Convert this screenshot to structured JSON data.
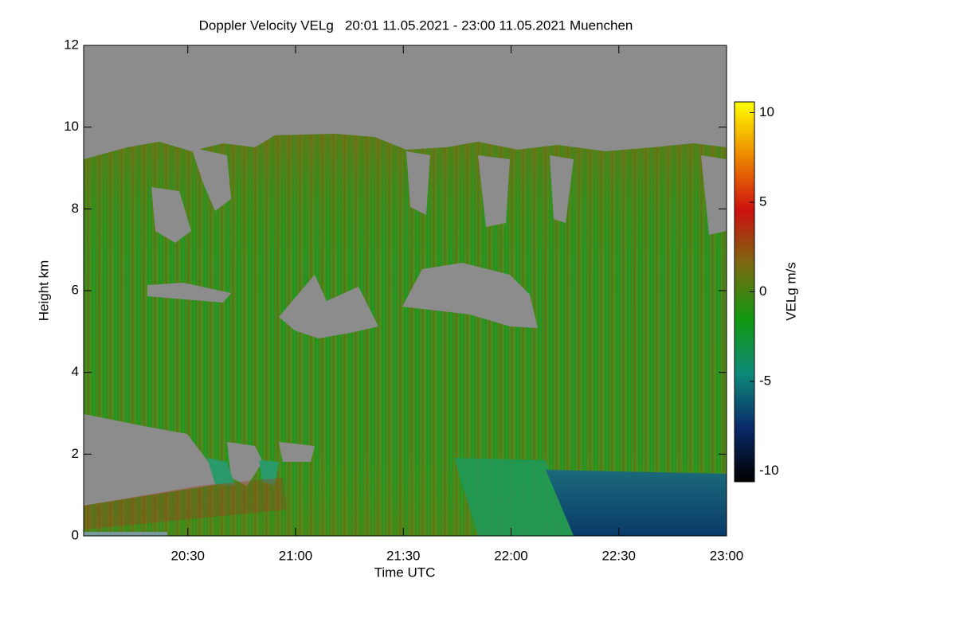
{
  "chart_data": {
    "type": "heatmap",
    "title": "Doppler Velocity VELg   20:01 11.05.2021 - 23:00 11.05.2021 Muenchen",
    "x_label": "Time UTC",
    "y_label": "Height km",
    "xlim": [
      "20:01",
      "23:00"
    ],
    "xticks": [
      "20:30",
      "21:00",
      "21:30",
      "22:00",
      "22:30",
      "23:00"
    ],
    "ylim": [
      0,
      12
    ],
    "yticks": [
      0,
      2,
      4,
      6,
      8,
      10,
      12
    ],
    "colorbar": {
      "label": "VELg m/s",
      "lim": [
        -10.6,
        10.6
      ],
      "ticks": [
        -10,
        -5,
        0,
        5,
        10
      ],
      "colors": [
        "#000000",
        "#0a2a6a",
        "#0f8a7a",
        "#119911",
        "#7a6a10",
        "#cc1010",
        "#ee8800",
        "#ffff00"
      ]
    }
  }
}
